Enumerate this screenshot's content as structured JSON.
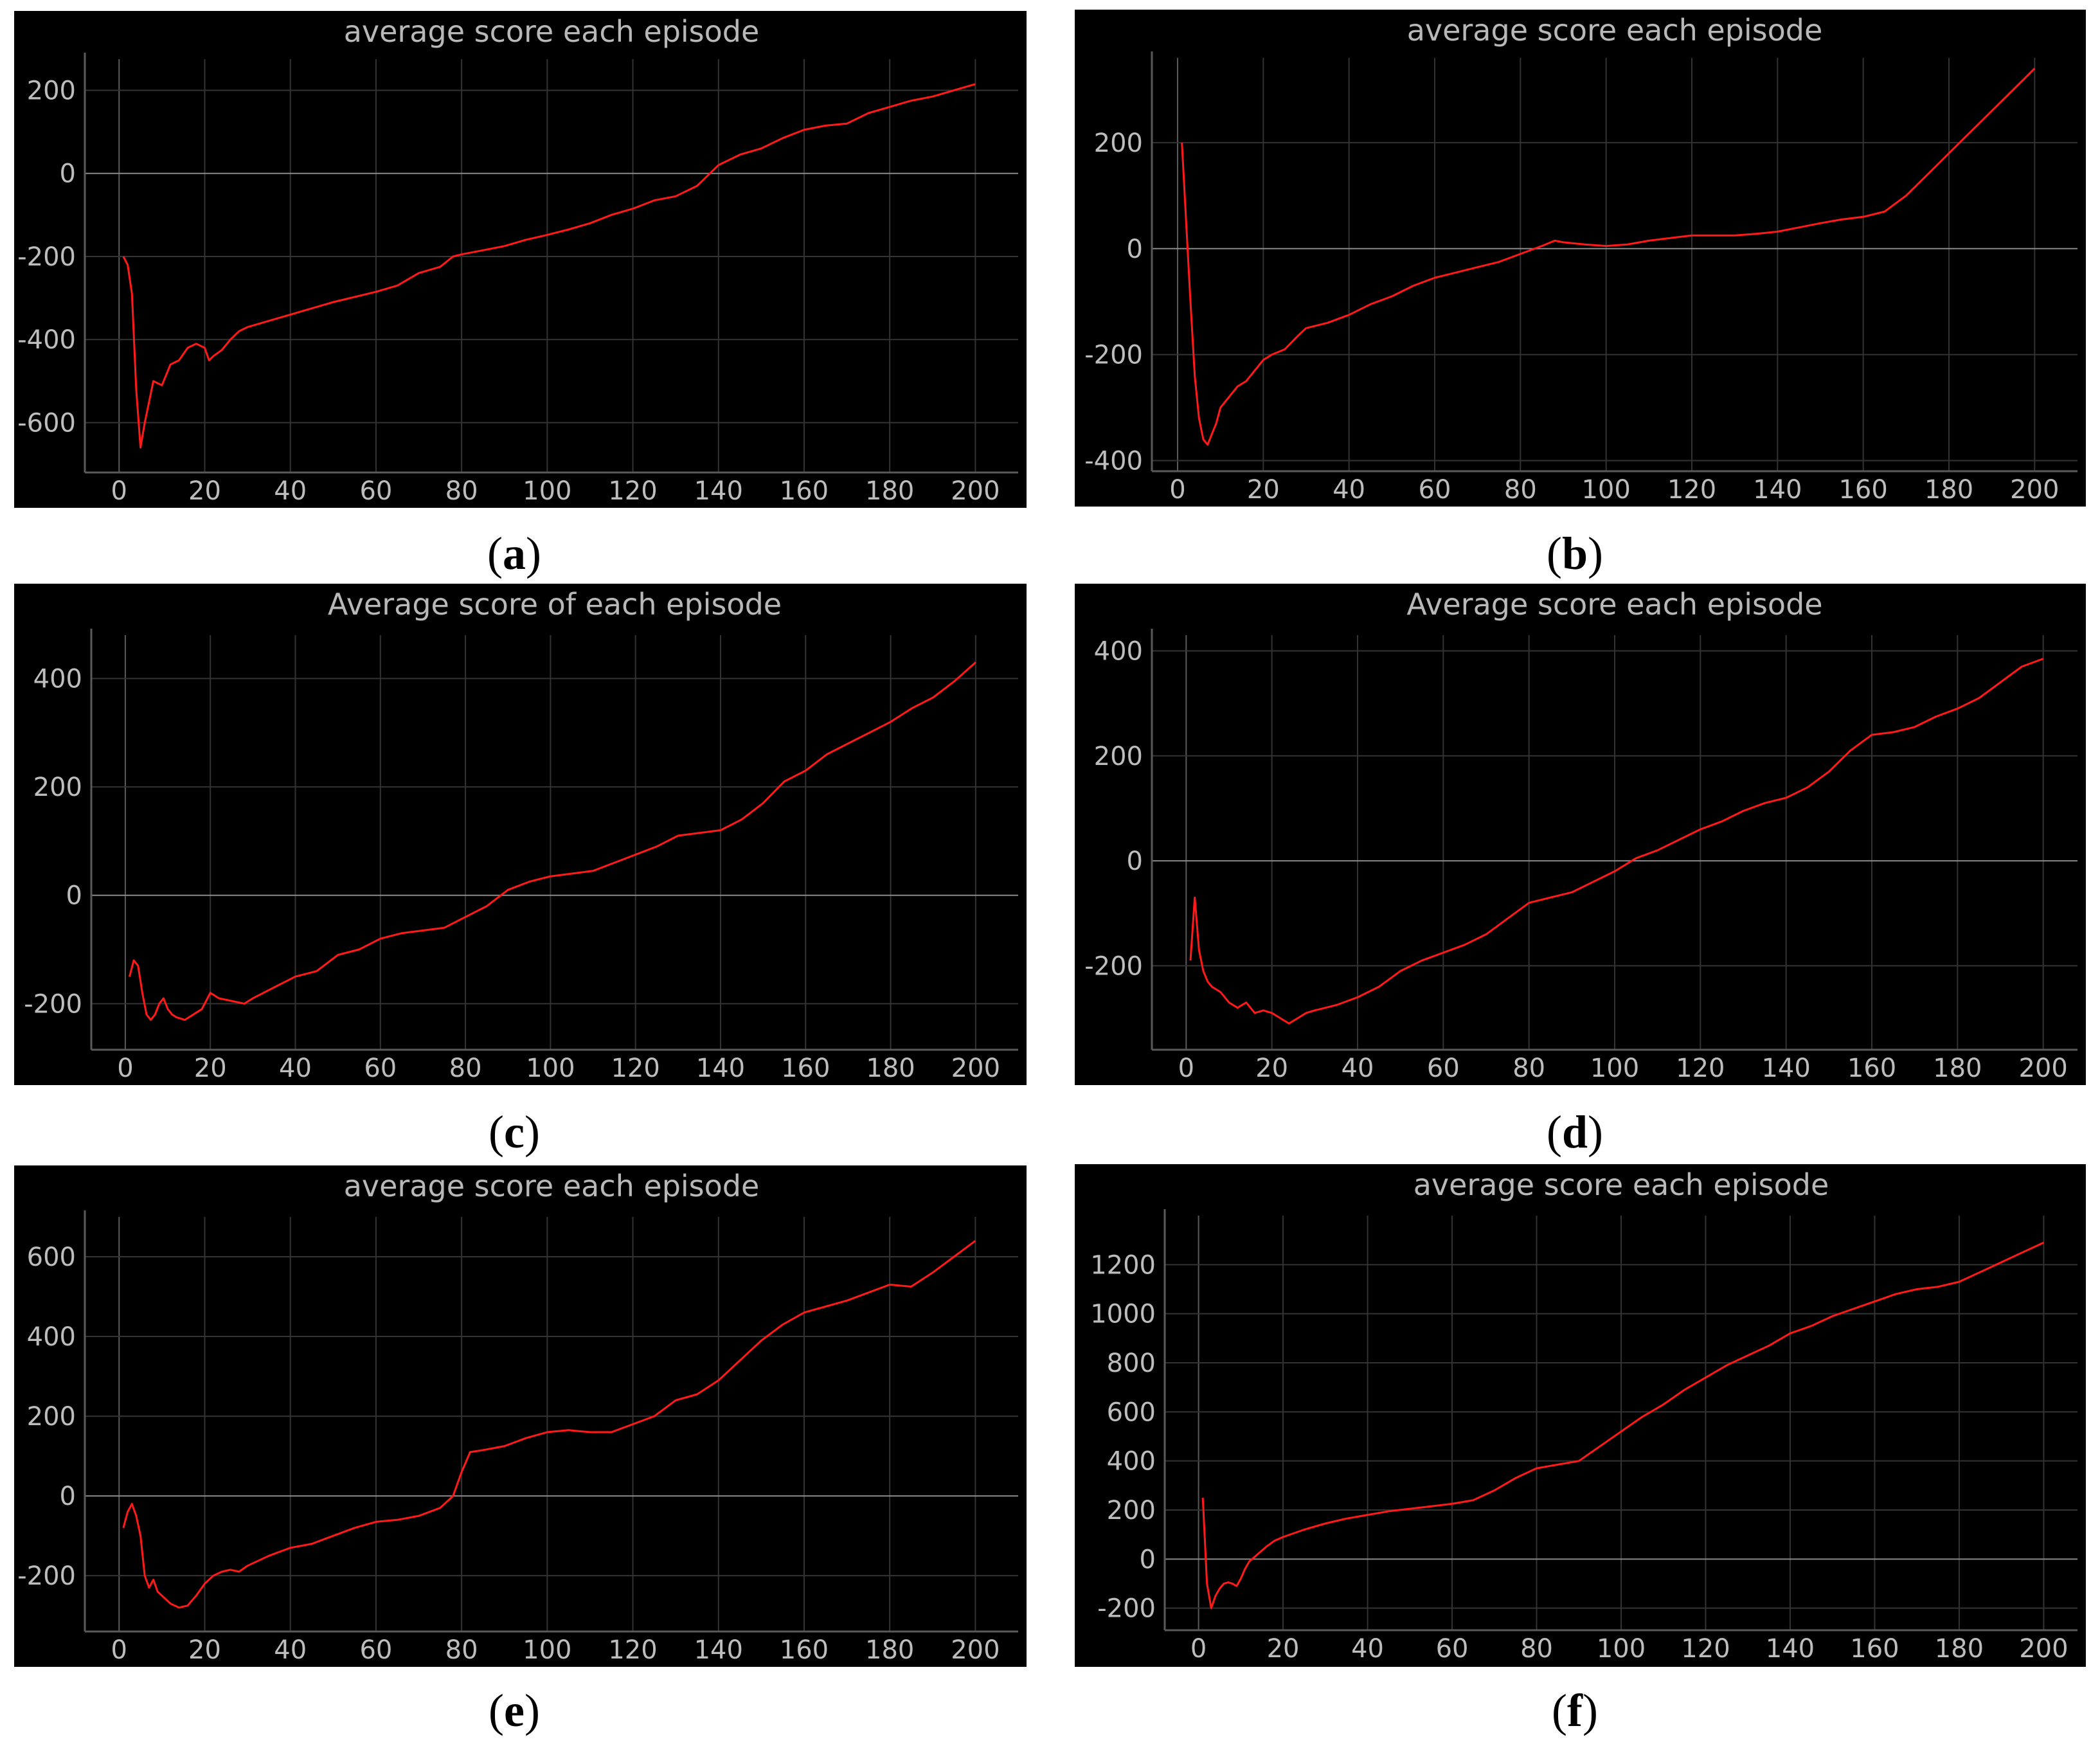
{
  "chart_data": [
    {
      "type": "line",
      "panel": "a",
      "title": "average score each episode",
      "xlim": [
        -8,
        210
      ],
      "ylim": [
        -720,
        275
      ],
      "xticks": [
        0,
        20,
        40,
        60,
        80,
        100,
        120,
        140,
        160,
        180,
        200
      ],
      "yticks": [
        200,
        0,
        -200,
        -400,
        -600
      ],
      "series": [
        {
          "x": [
            1,
            2,
            3,
            4,
            5,
            6,
            8,
            10,
            12,
            14,
            16,
            18,
            20,
            21,
            22,
            24,
            26,
            28,
            30,
            35,
            40,
            50,
            60,
            65,
            70,
            75,
            78,
            80,
            85,
            90,
            95,
            100,
            105,
            110,
            115,
            120,
            125,
            130,
            135,
            140,
            145,
            150,
            155,
            160,
            165,
            170,
            175,
            180,
            185,
            190,
            195,
            200
          ],
          "values": [
            -200,
            -220,
            -290,
            -520,
            -660,
            -600,
            -500,
            -510,
            -460,
            -450,
            -420,
            -410,
            -420,
            -450,
            -440,
            -425,
            -400,
            -380,
            -370,
            -355,
            -340,
            -310,
            -285,
            -270,
            -240,
            -225,
            -200,
            -195,
            -185,
            -175,
            -160,
            -148,
            -135,
            -120,
            -100,
            -85,
            -65,
            -55,
            -30,
            20,
            45,
            60,
            85,
            105,
            115,
            120,
            145,
            160,
            175,
            185,
            200,
            215
          ]
        }
      ]
    },
    {
      "type": "line",
      "panel": "b",
      "title": "average score each episode",
      "xlim": [
        -6,
        210
      ],
      "ylim": [
        -420,
        360
      ],
      "xticks": [
        0,
        20,
        40,
        60,
        80,
        100,
        120,
        140,
        160,
        180,
        200
      ],
      "yticks": [
        200,
        0,
        -200,
        -400
      ],
      "series": [
        {
          "x": [
            1,
            2,
            3,
            4,
            5,
            6,
            7,
            8,
            9,
            10,
            12,
            14,
            16,
            18,
            20,
            22,
            25,
            28,
            30,
            35,
            40,
            45,
            50,
            55,
            60,
            65,
            70,
            75,
            80,
            85,
            88,
            90,
            95,
            100,
            105,
            110,
            115,
            120,
            125,
            130,
            135,
            140,
            145,
            150,
            155,
            160,
            165,
            170,
            175,
            180,
            185,
            190,
            195,
            200
          ],
          "values": [
            200,
            50,
            -100,
            -240,
            -320,
            -360,
            -370,
            -350,
            -330,
            -300,
            -280,
            -260,
            -250,
            -230,
            -210,
            -200,
            -190,
            -165,
            -150,
            -140,
            -125,
            -105,
            -90,
            -70,
            -55,
            -45,
            -35,
            -25,
            -10,
            5,
            15,
            12,
            8,
            5,
            8,
            15,
            20,
            25,
            25,
            25,
            28,
            32,
            40,
            48,
            55,
            60,
            70,
            100,
            140,
            180,
            220,
            260,
            300,
            340
          ]
        }
      ]
    },
    {
      "type": "line",
      "panel": "c",
      "title": "Average score of each episode",
      "xlim": [
        -8,
        210
      ],
      "ylim": [
        -285,
        480
      ],
      "xticks": [
        0,
        20,
        40,
        60,
        80,
        100,
        120,
        140,
        160,
        180,
        200
      ],
      "yticks": [
        400,
        200,
        0,
        -200
      ],
      "series": [
        {
          "x": [
            1,
            2,
            3,
            4,
            5,
            6,
            7,
            8,
            9,
            10,
            11,
            12,
            14,
            16,
            18,
            20,
            22,
            25,
            28,
            30,
            35,
            40,
            45,
            50,
            55,
            60,
            65,
            70,
            75,
            80,
            85,
            90,
            95,
            100,
            105,
            110,
            115,
            120,
            125,
            130,
            135,
            140,
            145,
            150,
            155,
            160,
            165,
            170,
            175,
            180,
            185,
            190,
            195,
            200
          ],
          "values": [
            -150,
            -120,
            -130,
            -180,
            -220,
            -230,
            -220,
            -200,
            -190,
            -210,
            -220,
            -225,
            -230,
            -220,
            -210,
            -180,
            -190,
            -195,
            -200,
            -190,
            -170,
            -150,
            -140,
            -110,
            -100,
            -80,
            -70,
            -65,
            -60,
            -40,
            -20,
            10,
            25,
            35,
            40,
            45,
            60,
            75,
            90,
            110,
            115,
            120,
            140,
            170,
            210,
            230,
            260,
            280,
            300,
            320,
            345,
            365,
            395,
            430
          ]
        }
      ]
    },
    {
      "type": "line",
      "panel": "d",
      "title": "Average score each episode",
      "xlim": [
        -8,
        208
      ],
      "ylim": [
        -360,
        430
      ],
      "xticks": [
        0,
        20,
        40,
        60,
        80,
        100,
        120,
        140,
        160,
        180,
        200
      ],
      "yticks": [
        400,
        200,
        0,
        -200
      ],
      "series": [
        {
          "x": [
            1,
            2,
            3,
            4,
            5,
            6,
            8,
            10,
            12,
            14,
            16,
            18,
            20,
            22,
            24,
            26,
            28,
            30,
            35,
            40,
            45,
            50,
            55,
            60,
            65,
            70,
            75,
            80,
            85,
            90,
            95,
            100,
            105,
            110,
            115,
            120,
            125,
            130,
            135,
            140,
            145,
            150,
            155,
            160,
            165,
            170,
            175,
            180,
            185,
            190,
            195,
            200
          ],
          "values": [
            -190,
            -70,
            -170,
            -210,
            -230,
            -240,
            -250,
            -270,
            -280,
            -270,
            -290,
            -285,
            -290,
            -300,
            -310,
            -300,
            -290,
            -285,
            -275,
            -260,
            -240,
            -210,
            -190,
            -175,
            -160,
            -140,
            -110,
            -80,
            -70,
            -60,
            -40,
            -20,
            5,
            20,
            40,
            60,
            75,
            95,
            110,
            120,
            140,
            170,
            210,
            240,
            245,
            255,
            275,
            290,
            310,
            340,
            370,
            385
          ]
        }
      ]
    },
    {
      "type": "line",
      "panel": "e",
      "title": "average score each episode",
      "xlim": [
        -8,
        210
      ],
      "ylim": [
        -340,
        700
      ],
      "xticks": [
        0,
        20,
        40,
        60,
        80,
        100,
        120,
        140,
        160,
        180,
        200
      ],
      "yticks": [
        600,
        400,
        200,
        0,
        -200
      ],
      "series": [
        {
          "x": [
            1,
            2,
            3,
            4,
            5,
            6,
            7,
            8,
            9,
            10,
            12,
            14,
            16,
            18,
            20,
            22,
            24,
            26,
            28,
            30,
            35,
            40,
            45,
            50,
            55,
            60,
            65,
            70,
            75,
            78,
            80,
            82,
            85,
            90,
            95,
            100,
            105,
            110,
            115,
            120,
            125,
            130,
            135,
            140,
            145,
            150,
            155,
            160,
            165,
            170,
            175,
            180,
            185,
            190,
            195,
            200
          ],
          "values": [
            -80,
            -40,
            -20,
            -50,
            -100,
            -200,
            -230,
            -210,
            -240,
            -250,
            -270,
            -280,
            -275,
            -250,
            -220,
            -200,
            -190,
            -185,
            -190,
            -175,
            -150,
            -130,
            -120,
            -100,
            -80,
            -65,
            -60,
            -50,
            -30,
            0,
            60,
            110,
            115,
            125,
            145,
            160,
            165,
            160,
            160,
            180,
            200,
            240,
            255,
            290,
            340,
            390,
            430,
            460,
            475,
            490,
            510,
            530,
            525,
            560,
            600,
            640
          ]
        }
      ]
    },
    {
      "type": "line",
      "panel": "f",
      "title": "average score each episode",
      "xlim": [
        -8,
        208
      ],
      "ylim": [
        -290,
        1400
      ],
      "xticks": [
        0,
        20,
        40,
        60,
        80,
        100,
        120,
        140,
        160,
        180,
        200
      ],
      "yticks": [
        1200,
        1000,
        800,
        600,
        400,
        200,
        0,
        -200
      ],
      "series": [
        {
          "x": [
            1,
            2,
            3,
            4,
            5,
            6,
            7,
            8,
            9,
            10,
            11,
            12,
            14,
            16,
            18,
            20,
            25,
            30,
            35,
            40,
            45,
            50,
            55,
            60,
            65,
            70,
            75,
            80,
            85,
            90,
            95,
            100,
            105,
            110,
            115,
            120,
            125,
            130,
            135,
            140,
            145,
            150,
            155,
            160,
            165,
            170,
            175,
            180,
            185,
            190,
            195,
            200
          ],
          "values": [
            250,
            -100,
            -200,
            -150,
            -120,
            -100,
            -95,
            -100,
            -110,
            -80,
            -40,
            -10,
            20,
            50,
            75,
            90,
            120,
            145,
            165,
            180,
            195,
            205,
            215,
            225,
            240,
            280,
            330,
            370,
            385,
            400,
            460,
            520,
            580,
            630,
            690,
            740,
            790,
            830,
            870,
            920,
            950,
            990,
            1020,
            1050,
            1080,
            1100,
            1110,
            1130,
            1170,
            1210,
            1250,
            1290
          ]
        }
      ]
    }
  ],
  "captions": {
    "a": "a",
    "b": "b",
    "c": "c",
    "d": "d",
    "e": "e",
    "f": "f"
  },
  "colors": {
    "line": "#ff1a1a",
    "background": "#000000",
    "grid": "#333333",
    "axis": "#5a5a5a",
    "zero_line": "#8a8a8a"
  }
}
